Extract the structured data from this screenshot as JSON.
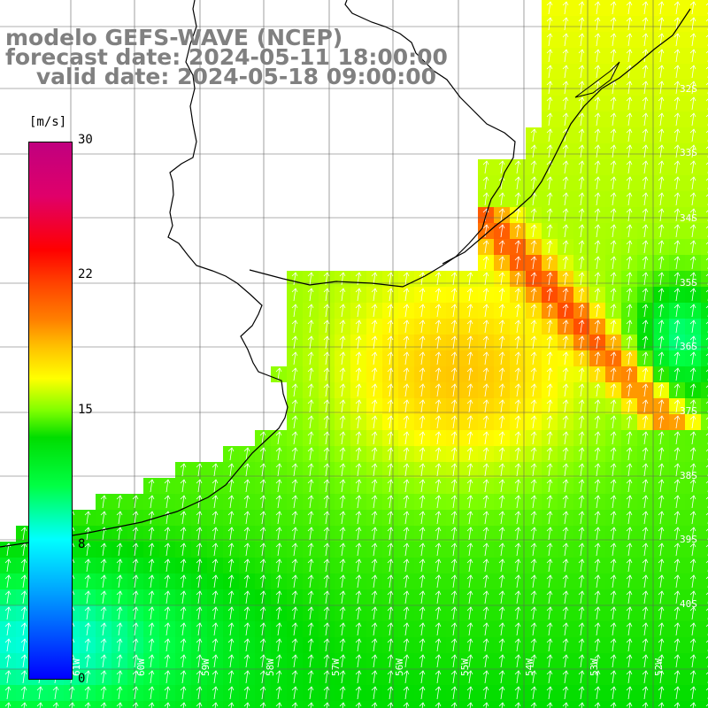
{
  "title": {
    "line1": "modelo GEFS-WAVE (NCEP)",
    "line2": "forecast date: 2024-05-11 18:00:00",
    "line3": "    valid date: 2024-05-18 09:00:00"
  },
  "colorbar": {
    "unit": "[m/s]",
    "ticks": [
      "30",
      "22",
      "15",
      "8",
      "0"
    ],
    "tick_values": [
      30,
      22,
      15,
      8,
      0
    ],
    "min": 0,
    "max": 30,
    "colors": [
      "#0000ff",
      "#00a0ff",
      "#00ffff",
      "#00ff44",
      "#00dd00",
      "#7fff00",
      "#ffff00",
      "#ffc000",
      "#ff7f00",
      "#ff4000",
      "#ff0000",
      "#e0006a",
      "#c0007f"
    ]
  },
  "map": {
    "lat_labels": [
      "32S",
      "33S",
      "34S",
      "35S",
      "36S",
      "37S",
      "38S",
      "39S",
      "40S"
    ],
    "lon_labels": [
      "61W",
      "60W",
      "59W",
      "58W",
      "57W",
      "56W",
      "55W",
      "54W",
      "53W",
      "52W"
    ],
    "land_color": "#ffffff",
    "coast_color": "#000000",
    "grid_color": "#606060",
    "arrow_color": "#ffffff"
  }
}
